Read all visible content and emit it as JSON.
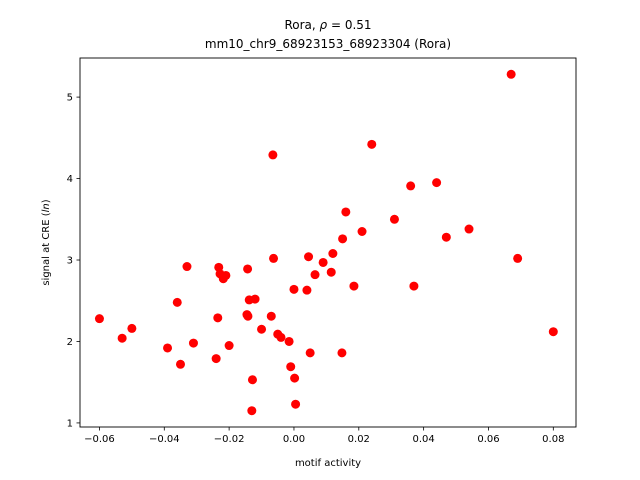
{
  "chart_data": {
    "type": "scatter",
    "title_line1_prefix": "Rora, ",
    "title_line1_rho": "ρ",
    "title_line1_suffix": " = 0.51",
    "title_line2": "mm10_chr9_68923153_68923304 (Rora)",
    "xlabel": "motif activity",
    "ylabel_prefix": "signal at CRE (",
    "ylabel_italic": "ln",
    "ylabel_suffix": ")",
    "xlim": [
      -0.066,
      0.087
    ],
    "ylim": [
      0.95,
      5.48
    ],
    "xticks": [
      -0.06,
      -0.04,
      -0.02,
      0.0,
      0.02,
      0.04,
      0.06,
      0.08
    ],
    "xtick_labels": [
      "−0.06",
      "−0.04",
      "−0.02",
      "0.00",
      "0.02",
      "0.04",
      "0.06",
      "0.08"
    ],
    "yticks": [
      1,
      2,
      3,
      4,
      5
    ],
    "ytick_labels": [
      "1",
      "2",
      "3",
      "4",
      "5"
    ],
    "grid": false,
    "legend": "none",
    "marker_color": "#ff0000",
    "points": [
      [
        -0.06,
        2.28
      ],
      [
        -0.053,
        2.04
      ],
      [
        -0.05,
        2.16
      ],
      [
        -0.039,
        1.92
      ],
      [
        -0.036,
        2.48
      ],
      [
        -0.035,
        1.72
      ],
      [
        -0.033,
        2.92
      ],
      [
        -0.031,
        1.98
      ],
      [
        -0.024,
        1.79
      ],
      [
        -0.0235,
        2.29
      ],
      [
        -0.0232,
        2.91
      ],
      [
        -0.0228,
        2.83
      ],
      [
        -0.0218,
        2.77
      ],
      [
        -0.021,
        2.81
      ],
      [
        -0.02,
        1.95
      ],
      [
        -0.0145,
        2.33
      ],
      [
        -0.0143,
        2.89
      ],
      [
        -0.0142,
        2.31
      ],
      [
        -0.0138,
        2.51
      ],
      [
        -0.013,
        1.15
      ],
      [
        -0.0128,
        1.53
      ],
      [
        -0.012,
        2.52
      ],
      [
        -0.01,
        2.15
      ],
      [
        -0.007,
        2.31
      ],
      [
        -0.0065,
        4.29
      ],
      [
        -0.0063,
        3.02
      ],
      [
        -0.005,
        2.09
      ],
      [
        -0.004,
        2.05
      ],
      [
        -0.0015,
        2.0
      ],
      [
        -0.001,
        1.69
      ],
      [
        0.0,
        2.64
      ],
      [
        0.0002,
        1.55
      ],
      [
        0.0005,
        1.23
      ],
      [
        0.004,
        2.63
      ],
      [
        0.0045,
        3.04
      ],
      [
        0.005,
        1.86
      ],
      [
        0.0065,
        2.82
      ],
      [
        0.009,
        2.97
      ],
      [
        0.0115,
        2.85
      ],
      [
        0.012,
        3.08
      ],
      [
        0.0148,
        1.86
      ],
      [
        0.015,
        3.26
      ],
      [
        0.016,
        3.59
      ],
      [
        0.0185,
        2.68
      ],
      [
        0.021,
        3.35
      ],
      [
        0.024,
        4.42
      ],
      [
        0.031,
        3.5
      ],
      [
        0.036,
        3.91
      ],
      [
        0.037,
        2.68
      ],
      [
        0.044,
        3.95
      ],
      [
        0.047,
        3.28
      ],
      [
        0.054,
        3.38
      ],
      [
        0.067,
        5.28
      ],
      [
        0.069,
        3.02
      ],
      [
        0.08,
        2.12
      ]
    ]
  }
}
